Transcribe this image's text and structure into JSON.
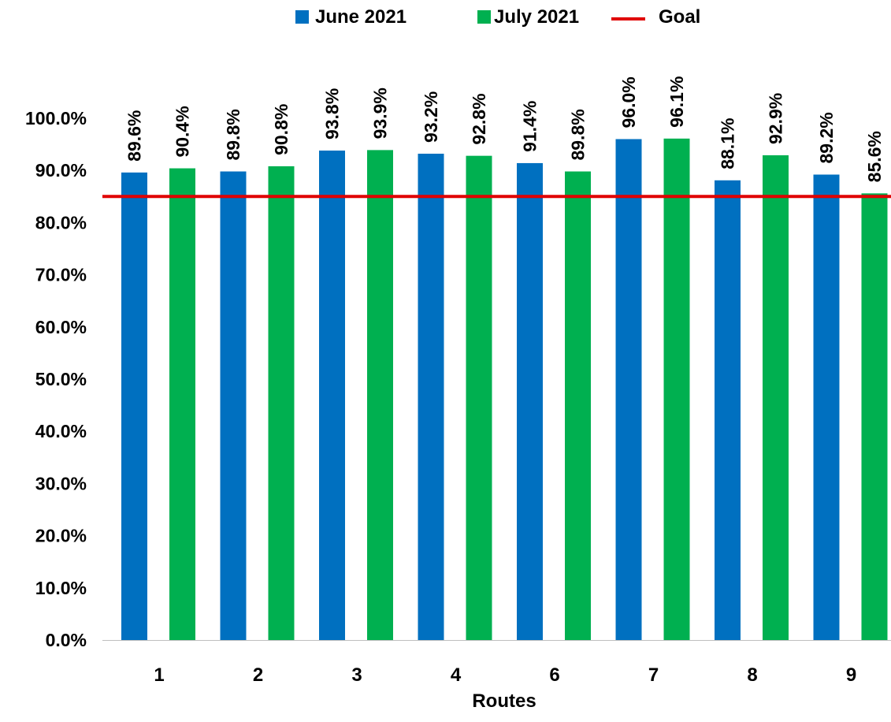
{
  "chart_data": {
    "type": "bar",
    "title": "",
    "xlabel": "Routes",
    "ylabel": "",
    "categories": [
      "1",
      "2",
      "3",
      "4",
      "6",
      "7",
      "8",
      "9"
    ],
    "series": [
      {
        "name": "June 2021",
        "color": "#0070C0",
        "values": [
          89.6,
          89.8,
          93.8,
          93.2,
          91.4,
          96.0,
          88.1,
          89.2
        ]
      },
      {
        "name": "July 2021",
        "color": "#00B050",
        "values": [
          90.4,
          90.8,
          93.9,
          92.8,
          89.8,
          96.1,
          92.9,
          85.6
        ]
      }
    ],
    "goal": {
      "name": "Goal",
      "value": 85.0,
      "color": "#E00000"
    },
    "ylim": [
      0,
      100
    ],
    "ytick_step": 10,
    "ytick_format": "percent_1dp",
    "grid": false,
    "legend_position": "top-center",
    "data_labels": {
      "orientation": "vertical",
      "format": "percent_1dp"
    }
  }
}
